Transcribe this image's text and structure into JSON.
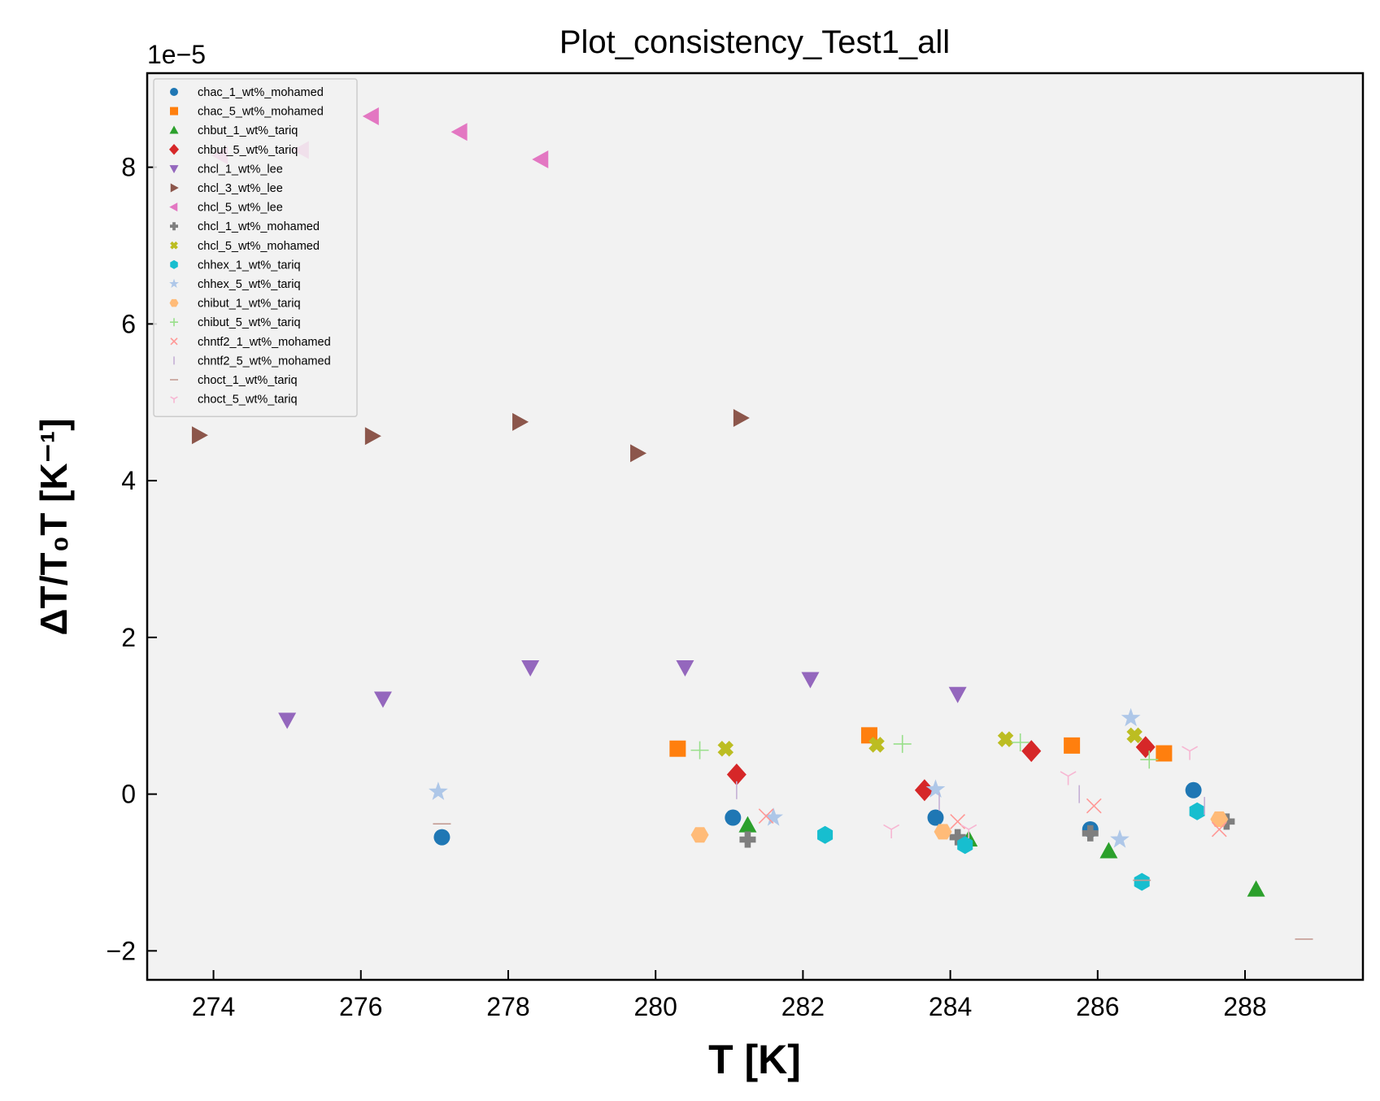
{
  "chart_data": {
    "type": "scatter",
    "title": "Plot_consistency_Test1_all",
    "xlabel": "T [K]",
    "ylabel": "ΔT/T₀T [K⁻¹]",
    "offset_text": "1e−5",
    "xlim": [
      273.1,
      289.6
    ],
    "ylim": [
      -2.37,
      9.2
    ],
    "x_ticks": [
      274,
      276,
      278,
      280,
      282,
      284,
      286,
      288
    ],
    "y_ticks": [
      -2,
      0,
      2,
      4,
      6,
      8
    ],
    "legend_position": "upper-left",
    "grid": false,
    "background": "#f2f2f2",
    "series": [
      {
        "name": "chac_1_wt%_mohamed",
        "color": "#1f77b4",
        "marker": "circle",
        "points": [
          [
            277.1,
            -0.55
          ],
          [
            281.05,
            -0.3
          ],
          [
            283.8,
            -0.3
          ],
          [
            285.9,
            -0.45
          ],
          [
            287.3,
            0.05
          ]
        ]
      },
      {
        "name": "chac_5_wt%_mohamed",
        "color": "#ff7f0e",
        "marker": "square",
        "points": [
          [
            280.3,
            0.58
          ],
          [
            282.9,
            0.75
          ],
          [
            285.65,
            0.62
          ],
          [
            286.9,
            0.52
          ]
        ]
      },
      {
        "name": "chbut_1_wt%_tariq",
        "color": "#2ca02c",
        "marker": "triangle-up",
        "points": [
          [
            281.25,
            -0.4
          ],
          [
            284.25,
            -0.58
          ],
          [
            286.15,
            -0.73
          ],
          [
            288.15,
            -1.22
          ]
        ]
      },
      {
        "name": "chbut_5_wt%_tariq",
        "color": "#d62728",
        "marker": "diamond",
        "points": [
          [
            281.1,
            0.25
          ],
          [
            283.65,
            0.05
          ],
          [
            285.1,
            0.55
          ],
          [
            286.65,
            0.6
          ]
        ]
      },
      {
        "name": "chcl_1_wt%_lee",
        "color": "#9467bd",
        "marker": "triangle-down",
        "points": [
          [
            275.0,
            0.95
          ],
          [
            276.3,
            1.22
          ],
          [
            278.3,
            1.62
          ],
          [
            280.4,
            1.62
          ],
          [
            282.1,
            1.47
          ],
          [
            284.1,
            1.28
          ]
        ]
      },
      {
        "name": "chcl_3_wt%_lee",
        "color": "#8c564b",
        "marker": "triangle-right",
        "points": [
          [
            273.8,
            4.58
          ],
          [
            276.15,
            4.57
          ],
          [
            278.15,
            4.75
          ],
          [
            279.75,
            4.35
          ],
          [
            281.15,
            4.8
          ]
        ]
      },
      {
        "name": "chcl_5_wt%_lee",
        "color": "#e377c2",
        "marker": "triangle-left",
        "points": [
          [
            274.1,
            8.15
          ],
          [
            275.2,
            8.22
          ],
          [
            276.15,
            8.65
          ],
          [
            277.35,
            8.45
          ],
          [
            278.45,
            8.1
          ]
        ]
      },
      {
        "name": "chcl_1_wt%_mohamed",
        "color": "#7f7f7f",
        "marker": "plus-filled",
        "points": [
          [
            281.25,
            -0.58
          ],
          [
            284.1,
            -0.55
          ],
          [
            285.9,
            -0.5
          ],
          [
            287.75,
            -0.35
          ]
        ]
      },
      {
        "name": "chcl_5_wt%_mohamed",
        "color": "#bcbd22",
        "marker": "x-filled",
        "points": [
          [
            280.95,
            0.58
          ],
          [
            283.0,
            0.63
          ],
          [
            284.75,
            0.7
          ],
          [
            286.5,
            0.75
          ]
        ]
      },
      {
        "name": "chhex_1_wt%_tariq",
        "color": "#17becf",
        "marker": "hexagon",
        "points": [
          [
            282.3,
            -0.52
          ],
          [
            284.2,
            -0.65
          ],
          [
            286.6,
            -1.12
          ],
          [
            287.35,
            -0.22
          ]
        ]
      },
      {
        "name": "chhex_5_wt%_tariq",
        "color": "#aec7e8",
        "marker": "star",
        "points": [
          [
            277.05,
            0.03
          ],
          [
            281.6,
            -0.3
          ],
          [
            283.8,
            0.06
          ],
          [
            286.3,
            -0.58
          ],
          [
            286.45,
            0.97
          ]
        ]
      },
      {
        "name": "chibut_1_wt%_tariq",
        "color": "#ffbb78",
        "marker": "hexagon-flat",
        "points": [
          [
            280.6,
            -0.52
          ],
          [
            283.9,
            -0.48
          ],
          [
            287.65,
            -0.32
          ]
        ]
      },
      {
        "name": "chibut_5_wt%_tariq",
        "color": "#98df8a",
        "marker": "plus",
        "points": [
          [
            280.6,
            0.56
          ],
          [
            283.35,
            0.64
          ],
          [
            284.95,
            0.66
          ],
          [
            286.7,
            0.44
          ]
        ]
      },
      {
        "name": "chntf2_1_wt%_mohamed",
        "color": "#ff9896",
        "marker": "x",
        "points": [
          [
            281.5,
            -0.28
          ],
          [
            284.1,
            -0.35
          ],
          [
            285.95,
            -0.15
          ],
          [
            287.65,
            -0.45
          ]
        ]
      },
      {
        "name": "chntf2_5_wt%_mohamed",
        "color": "#c5b0d5",
        "marker": "vline",
        "points": [
          [
            281.1,
            0.05
          ],
          [
            283.85,
            -0.1
          ],
          [
            285.75,
            0.0
          ],
          [
            287.45,
            -0.15
          ]
        ]
      },
      {
        "name": "choct_1_wt%_tariq",
        "color": "#c49c94",
        "marker": "hline",
        "points": [
          [
            277.1,
            -0.38
          ],
          [
            286.6,
            -1.1
          ],
          [
            288.8,
            -1.85
          ]
        ]
      },
      {
        "name": "choct_5_wt%_tariq",
        "color": "#f7b6d2",
        "marker": "tri-down",
        "points": [
          [
            283.2,
            -0.45
          ],
          [
            284.25,
            -0.45
          ],
          [
            285.6,
            0.23
          ],
          [
            287.25,
            0.55
          ]
        ]
      }
    ]
  }
}
